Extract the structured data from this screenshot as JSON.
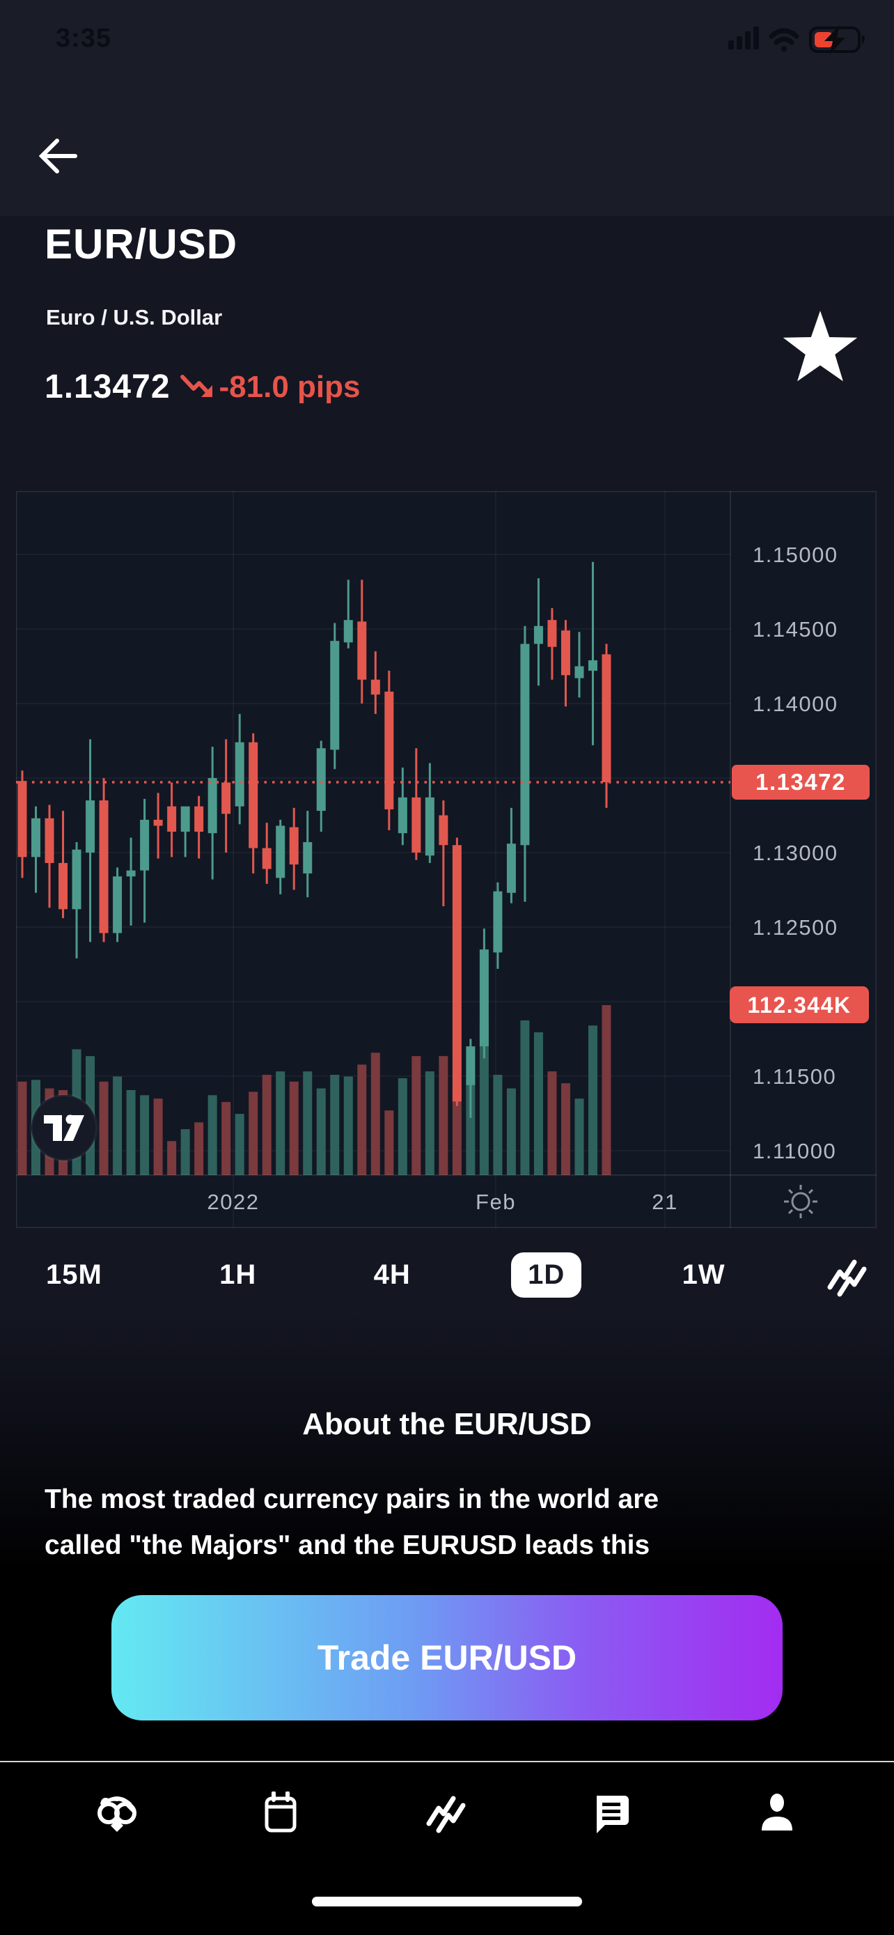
{
  "status_bar": {
    "time": "3:35"
  },
  "header": {
    "title": "EUR/USD",
    "subtitle": "Euro / U.S. Dollar",
    "price": "1.13472",
    "change": "-81.0 pips",
    "change_color": "#e8544a"
  },
  "chart_data": {
    "type": "candlestick",
    "title": "EUR/USD 1D chart",
    "timeframe": "1D",
    "current_price": 1.13472,
    "current_price_label": "1.13472",
    "volume_label": "112.344K",
    "y_ticks": [
      {
        "label": "1.15000",
        "price": 1.15
      },
      {
        "label": "1.14500",
        "price": 1.145
      },
      {
        "label": "1.14000",
        "price": 1.14
      },
      {
        "label": "1.13000",
        "price": 1.13
      },
      {
        "label": "1.12500",
        "price": 1.125
      },
      {
        "label": "1.11500",
        "price": 1.115
      },
      {
        "label": "1.11000",
        "price": 1.11
      }
    ],
    "grid_prices": [
      1.15,
      1.145,
      1.14,
      1.135,
      1.13,
      1.125,
      1.12,
      1.115,
      1.11
    ],
    "x_ticks": [
      {
        "label": "2022",
        "x": 312
      },
      {
        "label": "Feb",
        "x": 689
      },
      {
        "label": "21",
        "x": 932
      }
    ],
    "axis_range": {
      "min": 1.106,
      "max": 1.1545
    },
    "colors": {
      "up": "#4d9b8c",
      "down": "#e2584e",
      "vol_up": "#2f625c",
      "vol_down": "#7b3a3d",
      "accent": "#e8554e",
      "axis_text": "#b7bac4",
      "grid": "rgba(255,255,255,0.06)",
      "bg": "#121724"
    },
    "candles": [
      [
        1.1348,
        1.1355,
        1.1283,
        1.1297,
        0.55
      ],
      [
        1.1297,
        1.1331,
        1.1273,
        1.1323,
        0.56
      ],
      [
        1.1323,
        1.1332,
        1.1263,
        1.1293,
        0.51
      ],
      [
        1.1293,
        1.1328,
        1.1256,
        1.1262,
        0.5
      ],
      [
        1.1262,
        1.1307,
        1.1229,
        1.1302,
        0.74
      ],
      [
        1.13,
        1.1376,
        1.124,
        1.1335,
        0.7
      ],
      [
        1.1335,
        1.135,
        1.124,
        1.1246,
        0.55
      ],
      [
        1.1246,
        1.129,
        1.124,
        1.1284,
        0.58
      ],
      [
        1.1284,
        1.131,
        1.1251,
        1.1288,
        0.5
      ],
      [
        1.1288,
        1.1336,
        1.1253,
        1.1322,
        0.47
      ],
      [
        1.1322,
        1.134,
        1.1296,
        1.1318,
        0.45
      ],
      [
        1.1331,
        1.1347,
        1.1297,
        1.1314,
        0.2
      ],
      [
        1.1314,
        1.133,
        1.1297,
        1.1331,
        0.27
      ],
      [
        1.1331,
        1.1338,
        1.1296,
        1.1314,
        0.31
      ],
      [
        1.1313,
        1.1371,
        1.1282,
        1.135,
        0.47
      ],
      [
        1.1347,
        1.1376,
        1.13,
        1.1326,
        0.43
      ],
      [
        1.1331,
        1.1393,
        1.1319,
        1.1374,
        0.36
      ],
      [
        1.1374,
        1.138,
        1.1286,
        1.1303,
        0.49
      ],
      [
        1.1303,
        1.132,
        1.1279,
        1.1289,
        0.59
      ],
      [
        1.1283,
        1.1322,
        1.1272,
        1.1318,
        0.61
      ],
      [
        1.1317,
        1.133,
        1.1275,
        1.1292,
        0.55
      ],
      [
        1.1286,
        1.1328,
        1.127,
        1.1307,
        0.61
      ],
      [
        1.1328,
        1.1375,
        1.1314,
        1.137,
        0.51
      ],
      [
        1.1369,
        1.1454,
        1.1356,
        1.1442,
        0.59
      ],
      [
        1.1441,
        1.1483,
        1.1437,
        1.1456,
        0.58
      ],
      [
        1.1455,
        1.1483,
        1.14,
        1.1416,
        0.65
      ],
      [
        1.1416,
        1.1435,
        1.1393,
        1.1406,
        0.72
      ],
      [
        1.1408,
        1.1422,
        1.1315,
        1.1329,
        0.38
      ],
      [
        1.1313,
        1.1357,
        1.1305,
        1.1337,
        0.57
      ],
      [
        1.1337,
        1.137,
        1.1295,
        1.13,
        0.7
      ],
      [
        1.1298,
        1.136,
        1.1293,
        1.1337,
        0.61
      ],
      [
        1.1325,
        1.1335,
        1.1264,
        1.1305,
        0.7
      ],
      [
        1.1305,
        1.131,
        1.113,
        1.1133,
        0.53
      ],
      [
        1.1144,
        1.1175,
        1.1122,
        1.117,
        0.57
      ],
      [
        1.117,
        1.1249,
        1.1162,
        1.1235,
        0.91
      ],
      [
        1.1233,
        1.128,
        1.1222,
        1.1274,
        0.59
      ],
      [
        1.1273,
        1.133,
        1.1266,
        1.1306,
        0.51
      ],
      [
        1.1305,
        1.1452,
        1.1267,
        1.144,
        0.91
      ],
      [
        1.144,
        1.1484,
        1.1412,
        1.1452,
        0.84
      ],
      [
        1.1456,
        1.1464,
        1.1416,
        1.1438,
        0.61
      ],
      [
        1.1449,
        1.1456,
        1.1398,
        1.1419,
        0.54
      ],
      [
        1.1417,
        1.1448,
        1.1404,
        1.1425,
        0.45
      ],
      [
        1.1422,
        1.1495,
        1.1372,
        1.1429,
        0.88
      ],
      [
        1.1433,
        1.144,
        1.133,
        1.13472,
        1.0
      ]
    ]
  },
  "timeframes": {
    "options": [
      "15M",
      "1H",
      "4H",
      "1D",
      "1W"
    ],
    "active": "1D"
  },
  "about": {
    "heading": "About the EUR/USD",
    "paragraph_line1": "The most traded currency pairs in the world are",
    "paragraph_line2": "called \"the Majors\" and the EURUSD leads this"
  },
  "trade": {
    "label": "Trade EUR/USD"
  },
  "bottom_nav": {
    "items": [
      "owl-logo-icon",
      "calendar-icon",
      "markets-icon",
      "news-icon",
      "profile-icon"
    ]
  }
}
